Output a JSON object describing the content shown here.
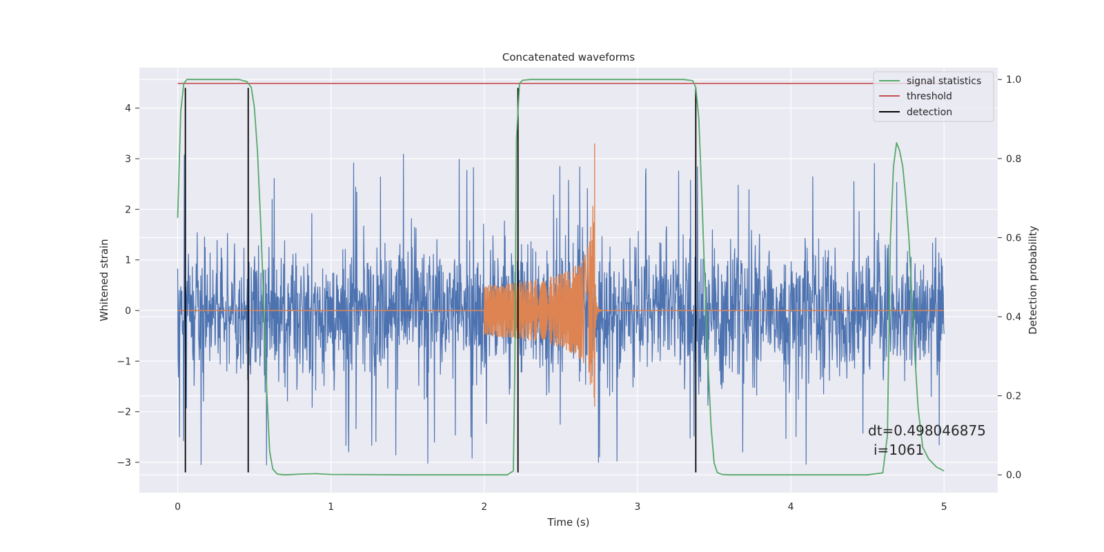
{
  "chart_data": {
    "type": "line",
    "title": "Concatenated waveforms",
    "xlabel": "Time (s)",
    "ylabel": "Whitened strain",
    "ylabel_right": "Detection probability",
    "xlim": [
      -0.25,
      5.35
    ],
    "ylim": [
      -3.6,
      4.8
    ],
    "ylim_right": [
      -0.045,
      1.03
    ],
    "x_ticks": [
      0,
      1,
      2,
      3,
      4,
      5
    ],
    "y_ticks": [
      -3,
      -2,
      -1,
      0,
      1,
      2,
      3,
      4
    ],
    "y_ticks_right": [
      0.0,
      0.2,
      0.4,
      0.6,
      0.8,
      1.0
    ],
    "grid": true,
    "legend_position": "top-right",
    "series": [
      {
        "name": "signal statistics",
        "axis": "right",
        "color": "#55a868",
        "x": [
          0.0,
          0.02,
          0.04,
          0.06,
          0.08,
          0.1,
          0.2,
          0.3,
          0.4,
          0.45,
          0.48,
          0.5,
          0.52,
          0.54,
          0.56,
          0.58,
          0.6,
          0.62,
          0.65,
          0.7,
          0.8,
          0.9,
          1.0,
          1.5,
          2.0,
          2.15,
          2.19,
          2.2,
          2.21,
          2.23,
          2.25,
          2.3,
          2.5,
          3.0,
          3.3,
          3.36,
          3.38,
          3.4,
          3.42,
          3.44,
          3.46,
          3.48,
          3.5,
          3.52,
          3.55,
          3.6,
          4.0,
          4.5,
          4.6,
          4.63,
          4.65,
          4.67,
          4.69,
          4.71,
          4.73,
          4.75,
          4.77,
          4.79,
          4.81,
          4.83,
          4.86,
          4.9,
          4.95,
          5.0
        ],
        "y": [
          0.65,
          0.92,
          0.99,
          1.0,
          1.0,
          1.0,
          1.0,
          1.0,
          1.0,
          0.995,
          0.98,
          0.93,
          0.82,
          0.65,
          0.45,
          0.22,
          0.06,
          0.015,
          0.002,
          0.0,
          0.002,
          0.003,
          0.001,
          0.0,
          0.0,
          0.0,
          0.01,
          0.3,
          0.85,
          0.99,
          0.998,
          1.0,
          1.0,
          1.0,
          1.0,
          0.997,
          0.98,
          0.9,
          0.7,
          0.48,
          0.28,
          0.12,
          0.03,
          0.006,
          0.001,
          0.0,
          0.0,
          0.0,
          0.005,
          0.1,
          0.6,
          0.78,
          0.84,
          0.82,
          0.78,
          0.7,
          0.6,
          0.45,
          0.3,
          0.17,
          0.07,
          0.04,
          0.02,
          0.01
        ]
      },
      {
        "name": "threshold",
        "axis": "right",
        "color": "#c44e52",
        "x": [
          0.0,
          5.0
        ],
        "y": [
          0.99,
          0.99
        ]
      },
      {
        "name": "detection",
        "axis": "left",
        "color": "#000000",
        "vertical_lines_x": [
          0.05,
          0.46,
          2.22,
          3.38
        ],
        "ymin": -3.2,
        "ymax": 4.4
      },
      {
        "axis": "left",
        "color": "#4c72b0",
        "x_range": [
          0.0,
          5.0
        ],
        "samples": 2200,
        "amplitude_ceiling": 3.2,
        "amplitude_floor": -3.2
      },
      {
        "axis": "left",
        "color": "#dd8452",
        "x_range": [
          0.0,
          5.0
        ],
        "chirp_start": 2.0,
        "chirp_peak": 2.72,
        "chirp_peak_amplitude": 3.3
      }
    ],
    "annotation": {
      "lines": [
        "dt=0.498046875",
        "i=1061"
      ]
    }
  }
}
